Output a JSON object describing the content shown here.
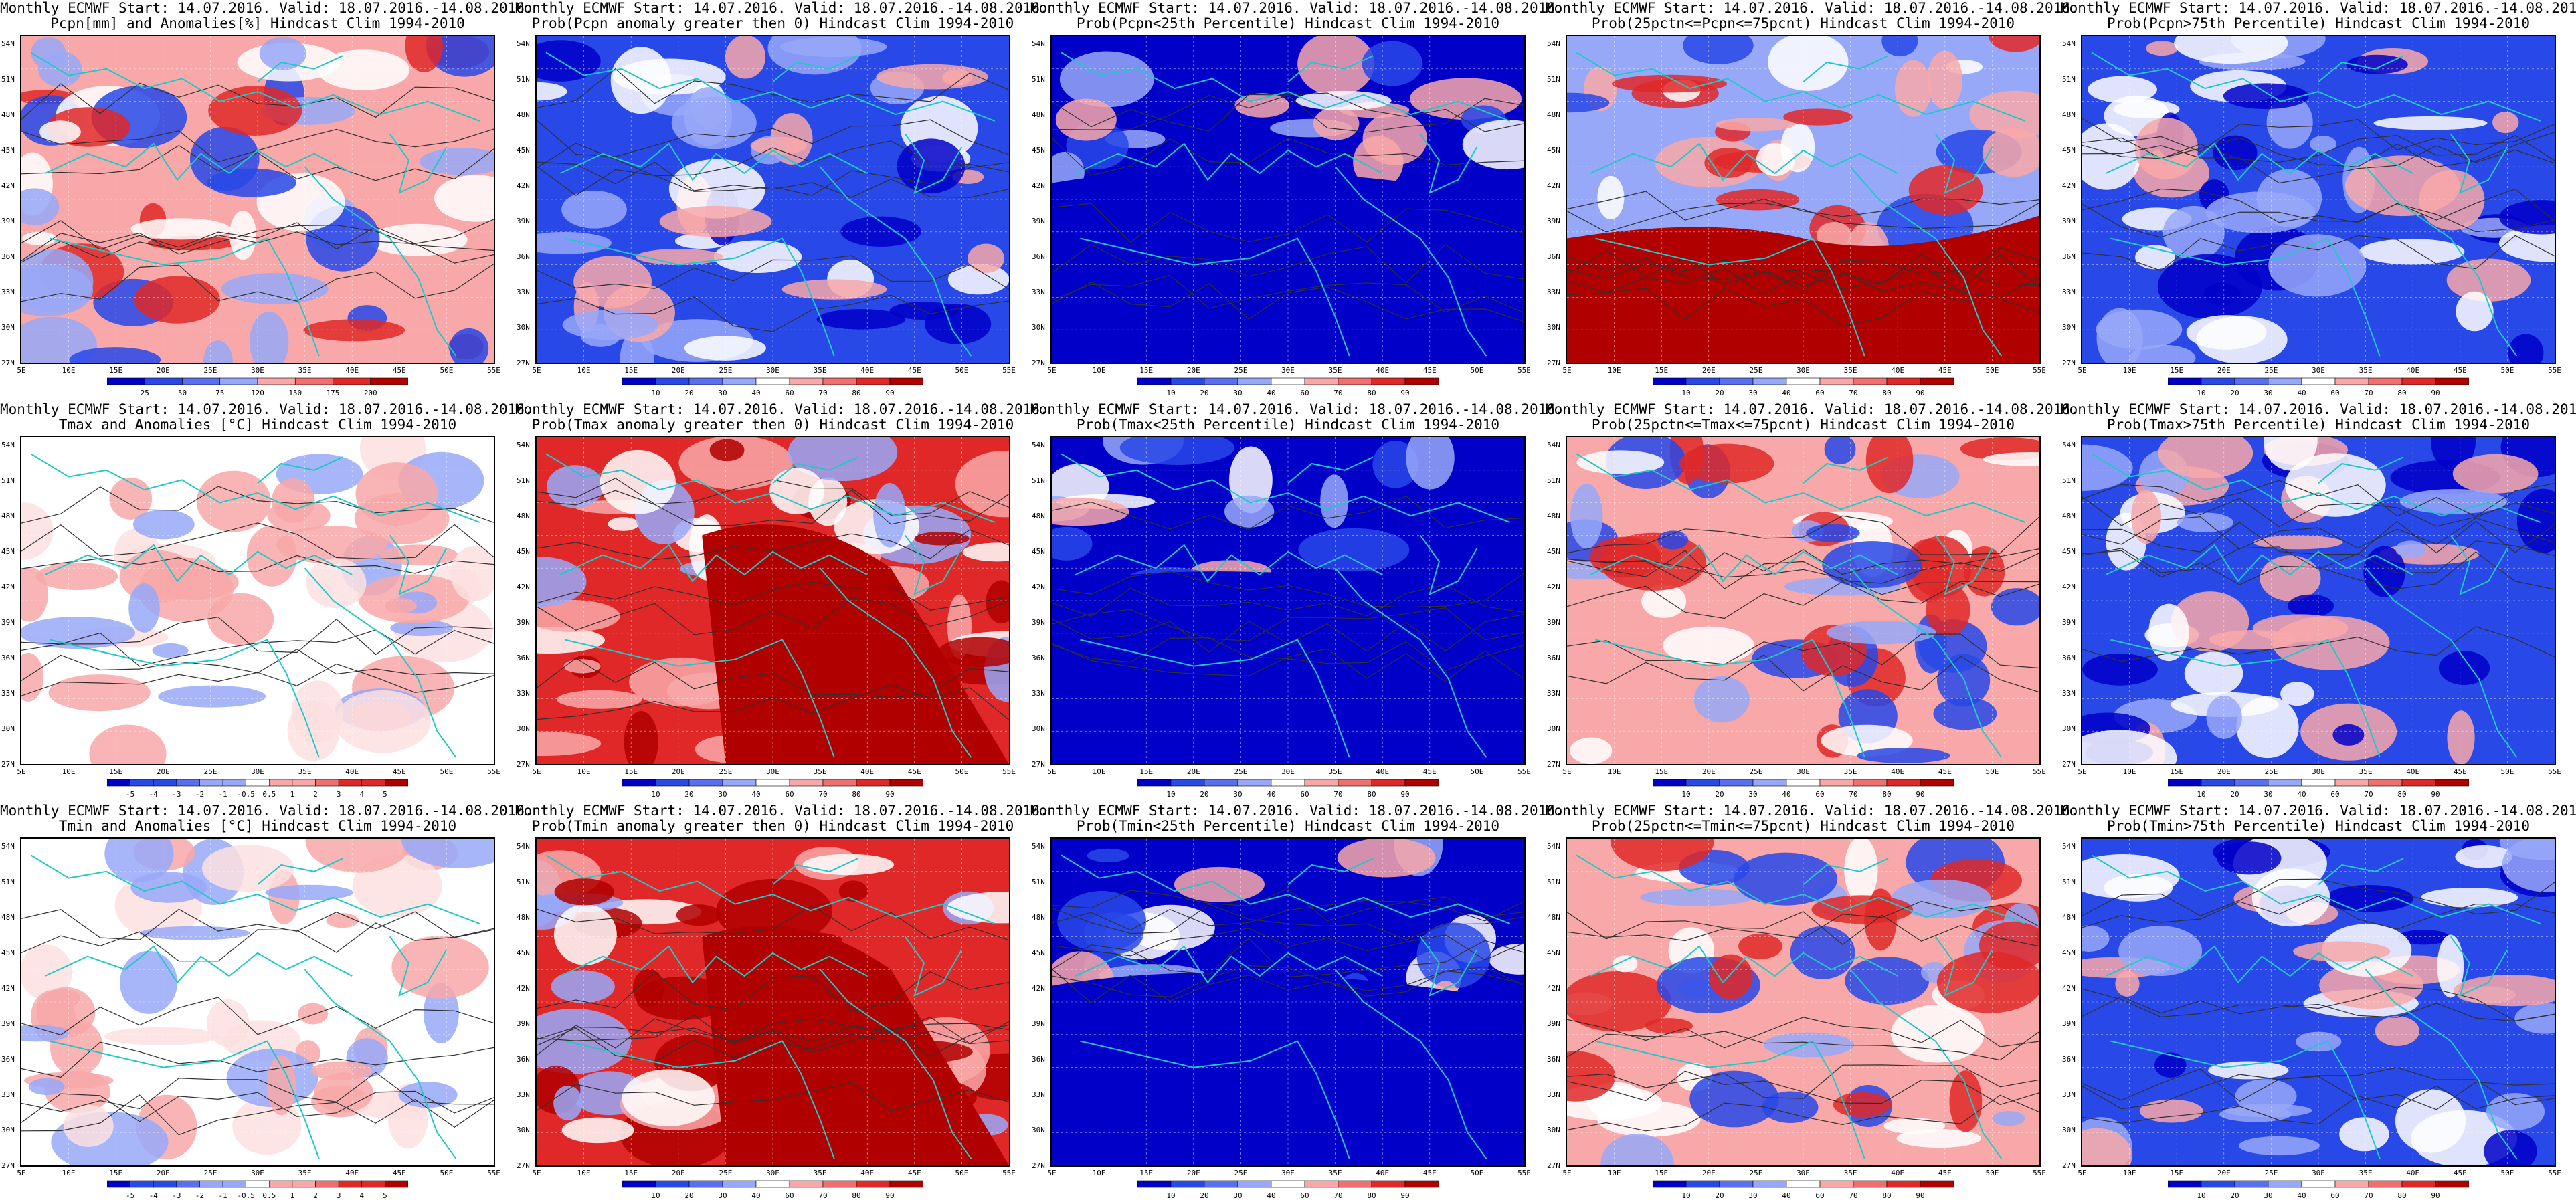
{
  "axes": {
    "lat_labels": [
      "54N",
      "51N",
      "48N",
      "45N",
      "42N",
      "39N",
      "36N",
      "33N",
      "30N",
      "27N"
    ],
    "lon_labels": [
      "5E",
      "10E",
      "15E",
      "20E",
      "25E",
      "30E",
      "35E",
      "40E",
      "45E",
      "50E",
      "55E"
    ]
  },
  "colorbars": {
    "prob": [
      "10",
      "20",
      "30",
      "40",
      "60",
      "70",
      "80",
      "90"
    ],
    "pcpn": [
      "25",
      "50",
      "75",
      "120",
      "150",
      "175",
      "200"
    ],
    "temp": [
      "-5",
      "-4",
      "-3",
      "-2",
      "-1",
      "-0.5",
      "0.5",
      "1",
      "2",
      "3",
      "4",
      "5"
    ]
  },
  "palette": {
    "blue_dark": "#0000c8",
    "blue_mid": "#2848e8",
    "blue_light": "#98a8f8",
    "red_light": "#f8a8a8",
    "red_mid": "#e02828",
    "red_dark": "#b00000",
    "coast": "#20c8c8",
    "contour": "#303030"
  },
  "panels": [
    {
      "line1": "Monthly ECMWF Start: 14.07.2016. Valid: 18.07.2016.-14.08.2016.",
      "line2": "Pcpn[mm] and Anomalies[%] Hindcast Clim 1994-2010",
      "bar": "pcpn",
      "theme": "mixed"
    },
    {
      "line1": "Monthly ECMWF Start: 14.07.2016. Valid: 18.07.2016.-14.08.2016.",
      "line2": "Prob(Pcpn anomaly greater then 0) Hindcast Clim 1994-2010",
      "bar": "prob",
      "theme": "blue"
    },
    {
      "line1": "Monthly ECMWF Start: 14.07.2016. Valid: 18.07.2016.-14.08.2016.",
      "line2": "Prob(Pcpn<25th Percentile) Hindcast Clim 1994-2010",
      "bar": "prob",
      "theme": "deepblue"
    },
    {
      "line1": "Monthly ECMWF Start: 14.07.2016. Valid: 18.07.2016.-14.08.2016.",
      "line2": "Prob(25pctn<=Pcpn<=75pcnt) Hindcast Clim 1994-2010",
      "bar": "prob",
      "theme": "redsouth"
    },
    {
      "line1": "Monthly ECMWF Start: 14.07.2016. Valid: 18.07.2016.-14.08.2016.",
      "line2": "Prob(Pcpn>75th Percentile) Hindcast Clim 1994-2010",
      "bar": "prob",
      "theme": "blue"
    },
    {
      "line1": "Monthly ECMWF Start: 14.07.2016. Valid: 18.07.2016.-14.08.2016.",
      "line2": "Tmax and Anomalies [°C] Hindcast Clim 1994-2010",
      "bar": "temp",
      "theme": "lightred"
    },
    {
      "line1": "Monthly ECMWF Start: 14.07.2016. Valid: 18.07.2016.-14.08.2016.",
      "line2": "Prob(Tmax anomaly greater then 0) Hindcast Clim 1994-2010",
      "bar": "prob",
      "theme": "deepred"
    },
    {
      "line1": "Monthly ECMWF Start: 14.07.2016. Valid: 18.07.2016.-14.08.2016.",
      "line2": "Prob(Tmax<25th Percentile) Hindcast Clim 1994-2010",
      "bar": "prob",
      "theme": "deepblue"
    },
    {
      "line1": "Monthly ECMWF Start: 14.07.2016. Valid: 18.07.2016.-14.08.2016.",
      "line2": "Prob(25pctn<=Tmax<=75pcnt) Hindcast Clim 1994-2010",
      "bar": "prob",
      "theme": "mixed"
    },
    {
      "line1": "Monthly ECMWF Start: 14.07.2016. Valid: 18.07.2016.-14.08.2016.",
      "line2": "Prob(Tmax>75th Percentile) Hindcast Clim 1994-2010",
      "bar": "prob",
      "theme": "blue"
    },
    {
      "line1": "Monthly ECMWF Start: 14.07.2016. Valid: 18.07.2016.-14.08.2016.",
      "line2": "Tmin and Anomalies [°C] Hindcast Clim 1994-2010",
      "bar": "temp",
      "theme": "lightred"
    },
    {
      "line1": "Monthly ECMWF Start: 14.07.2016. Valid: 18.07.2016.-14.08.2016.",
      "line2": "Prob(Tmin anomaly greater then 0) Hindcast Clim 1994-2010",
      "bar": "prob",
      "theme": "deepred"
    },
    {
      "line1": "Monthly ECMWF Start: 14.07.2016. Valid: 18.07.2016.-14.08.2016.",
      "line2": "Prob(Tmin<25th Percentile) Hindcast Clim 1994-2010",
      "bar": "prob",
      "theme": "deepblue"
    },
    {
      "line1": "Monthly ECMWF Start: 14.07.2016. Valid: 18.07.2016.-14.08.2016.",
      "line2": "Prob(25pctn<=Tmin<=75pcnt) Hindcast Clim 1994-2010",
      "bar": "prob",
      "theme": "mixed"
    },
    {
      "line1": "Monthly ECMWF Start: 14.07.2016. Valid: 18.07.2016.-14.08.2016.",
      "line2": "Prob(Tmin>75th Percentile) Hindcast Clim 1994-2010",
      "bar": "prob",
      "theme": "blue"
    }
  ]
}
